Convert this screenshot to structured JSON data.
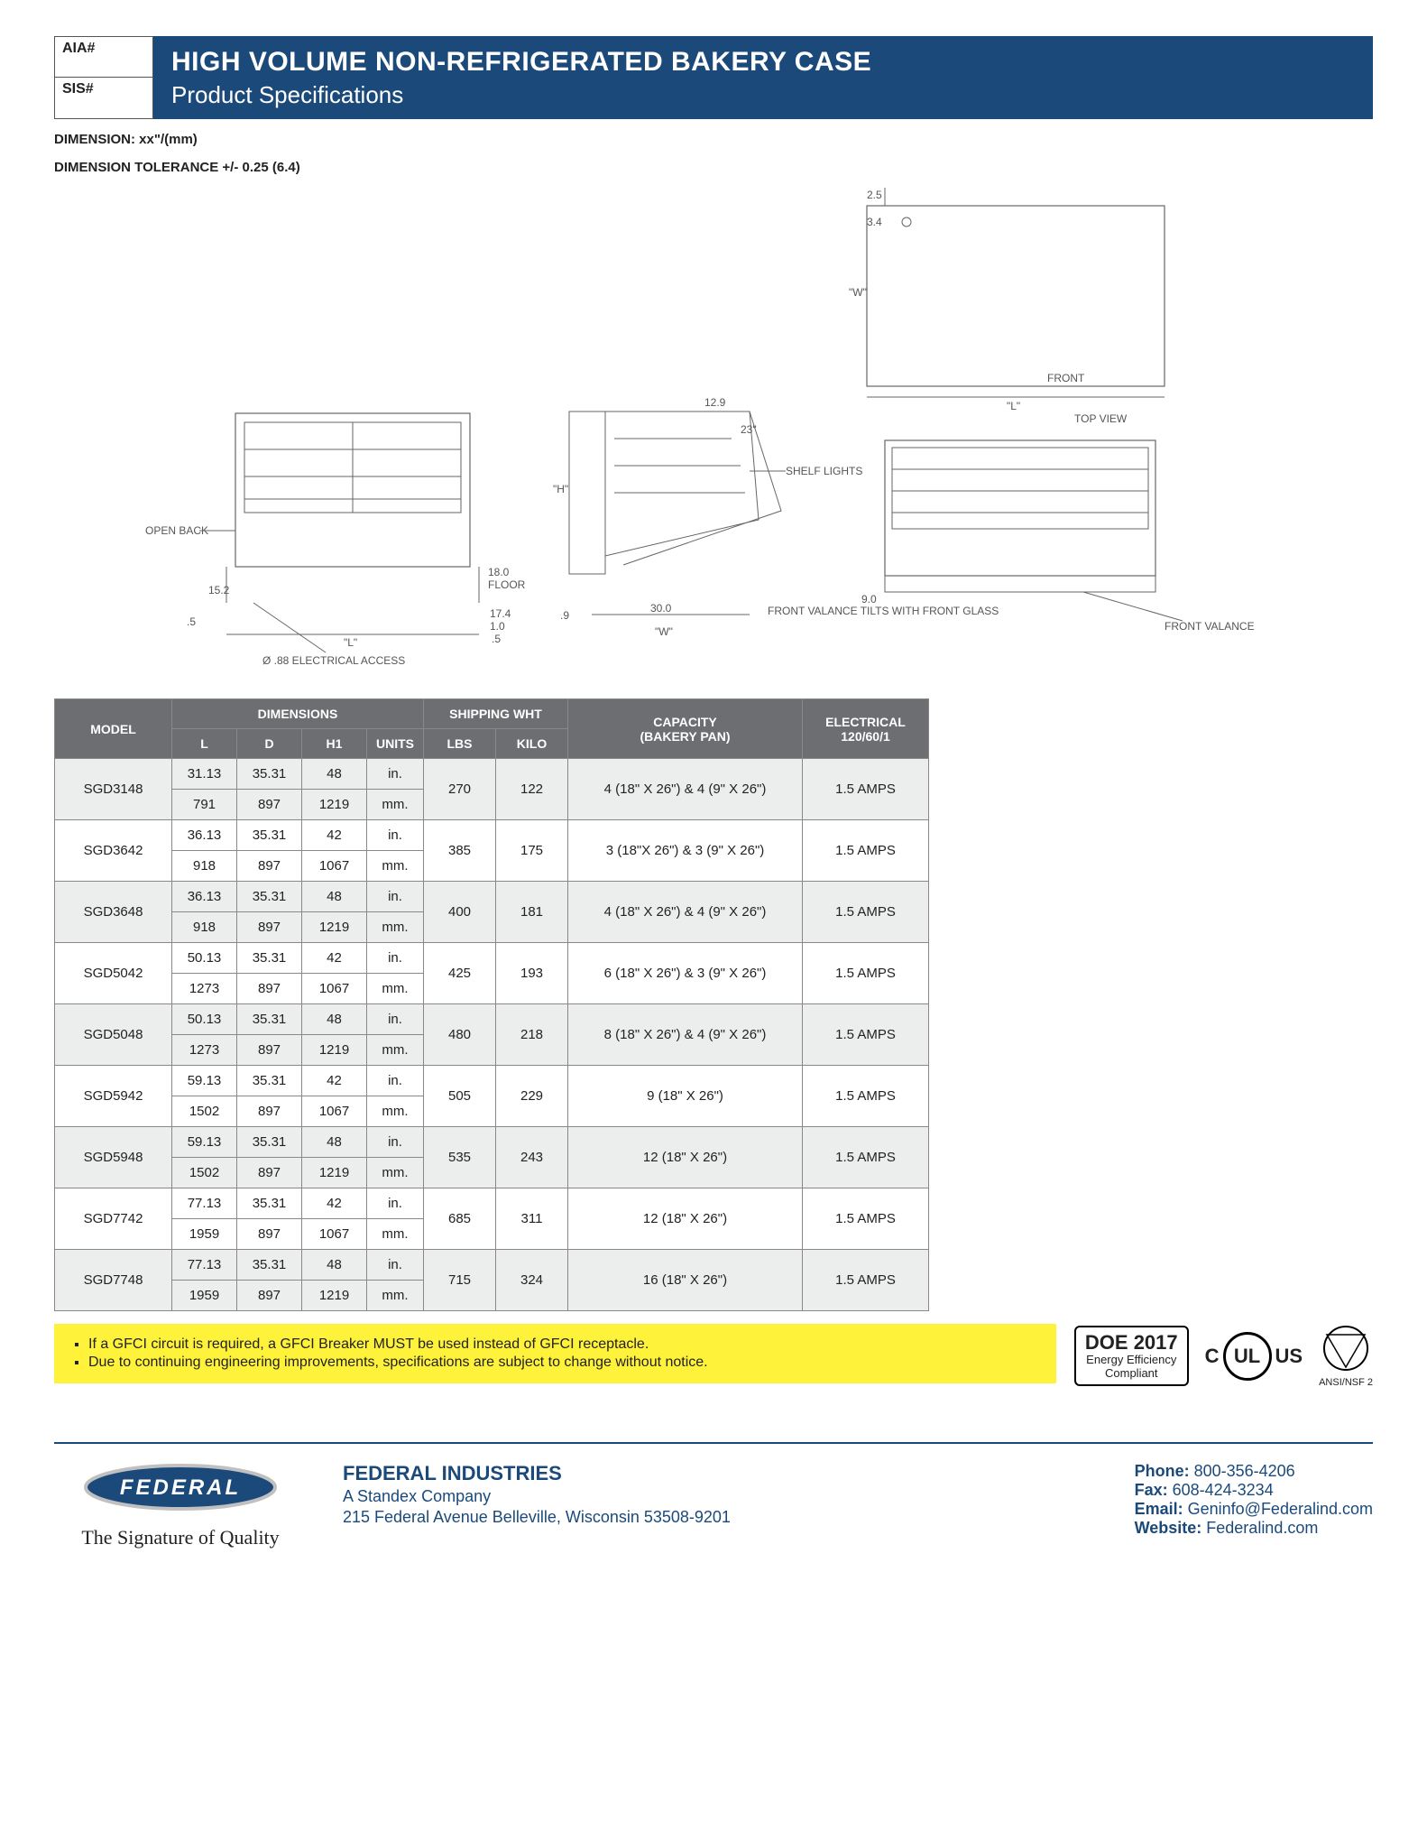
{
  "header": {
    "aia_label": "AIA#",
    "sis_label": "SIS#",
    "title": "HIGH VOLUME NON-REFRIGERATED BAKERY CASE",
    "subtitle": "Product Specifications"
  },
  "notes": {
    "dim_note1": "DIMENSION:  xx\"/(mm)",
    "dim_note2": "DIMENSION TOLERANCE +/- 0.25 (6.4)"
  },
  "diagram_labels": {
    "top_25": "2.5",
    "top_34": "3.4",
    "w": "\"W\"",
    "front": "FRONT",
    "l_top": "\"L\"",
    "top_view": "TOP VIEW",
    "d129": "12.9",
    "d23": "23\"",
    "shelf_lights": "SHELF LIGHTS",
    "open_back": "OPEN BACK",
    "d152": "15.2",
    "floor180": "18.0",
    "floor": "FLOOR",
    "d174": "17.4",
    "d10": "1.0",
    "d05": ".5",
    "l_bottom": "\"L\"",
    "elec": "Ø .88 ELECTRICAL ACCESS",
    "h": "\"H\"",
    "d9": ".9",
    "d300": "30.0",
    "w2": "\"W\"",
    "d90": "9.0",
    "front_valance": "FRONT VALANCE",
    "tilts": "FRONT VALANCE TILTS WITH FRONT GLASS"
  },
  "table": {
    "headers": {
      "model": "MODEL",
      "dimensions": "DIMENSIONS",
      "shipping": "SHIPPING WHT",
      "capacity": "CAPACITY",
      "capacity_sub": "(BAKERY PAN)",
      "electrical": "ELECTRICAL",
      "electrical_sub": "120/60/1",
      "L": "L",
      "D": "D",
      "H1": "H1",
      "UNITS": "UNITS",
      "LBS": "LBS",
      "KILO": "KILO"
    },
    "rows": [
      {
        "model": "SGD3148",
        "in": [
          "31.13",
          "35.31",
          "48"
        ],
        "mm": [
          "791",
          "897",
          "1219"
        ],
        "lbs": "270",
        "kilo": "122",
        "cap": "4 (18\" X 26\") & 4 (9\" X 26\")",
        "elec": "1.5 AMPS",
        "alt": true
      },
      {
        "model": "SGD3642",
        "in": [
          "36.13",
          "35.31",
          "42"
        ],
        "mm": [
          "918",
          "897",
          "1067"
        ],
        "lbs": "385",
        "kilo": "175",
        "cap": "3 (18\"X 26\") & 3 (9\" X 26\")",
        "elec": "1.5 AMPS",
        "alt": false
      },
      {
        "model": "SGD3648",
        "in": [
          "36.13",
          "35.31",
          "48"
        ],
        "mm": [
          "918",
          "897",
          "1219"
        ],
        "lbs": "400",
        "kilo": "181",
        "cap": "4 (18\" X 26\") & 4 (9\" X 26\")",
        "elec": "1.5 AMPS",
        "alt": true
      },
      {
        "model": "SGD5042",
        "in": [
          "50.13",
          "35.31",
          "42"
        ],
        "mm": [
          "1273",
          "897",
          "1067"
        ],
        "lbs": "425",
        "kilo": "193",
        "cap": "6 (18\" X 26\") & 3 (9\" X 26\")",
        "elec": "1.5 AMPS",
        "alt": false
      },
      {
        "model": "SGD5048",
        "in": [
          "50.13",
          "35.31",
          "48"
        ],
        "mm": [
          "1273",
          "897",
          "1219"
        ],
        "lbs": "480",
        "kilo": "218",
        "cap": "8 (18\" X 26\") & 4 (9\" X 26\")",
        "elec": "1.5 AMPS",
        "alt": true
      },
      {
        "model": "SGD5942",
        "in": [
          "59.13",
          "35.31",
          "42"
        ],
        "mm": [
          "1502",
          "897",
          "1067"
        ],
        "lbs": "505",
        "kilo": "229",
        "cap": "9 (18\" X 26\")",
        "elec": "1.5 AMPS",
        "alt": false
      },
      {
        "model": "SGD5948",
        "in": [
          "59.13",
          "35.31",
          "48"
        ],
        "mm": [
          "1502",
          "897",
          "1219"
        ],
        "lbs": "535",
        "kilo": "243",
        "cap": "12 (18\" X 26\")",
        "elec": "1.5 AMPS",
        "alt": true
      },
      {
        "model": "SGD7742",
        "in": [
          "77.13",
          "35.31",
          "42"
        ],
        "mm": [
          "1959",
          "897",
          "1067"
        ],
        "lbs": "685",
        "kilo": "311",
        "cap": "12 (18\" X 26\")",
        "elec": "1.5 AMPS",
        "alt": false
      },
      {
        "model": "SGD7748",
        "in": [
          "77.13",
          "35.31",
          "48"
        ],
        "mm": [
          "1959",
          "897",
          "1219"
        ],
        "lbs": "715",
        "kilo": "324",
        "cap": "16 (18\" X 26\")",
        "elec": "1.5 AMPS",
        "alt": true
      }
    ],
    "units_in": "in.",
    "units_mm": "mm."
  },
  "yellow_notes": {
    "n1": "If a GFCI circuit is required, a GFCI Breaker MUST be used instead of GFCI receptacle.",
    "n2": "Due to continuing engineering improvements, specifications are subject to change without notice."
  },
  "cert": {
    "doe_top": "DOE 2017",
    "doe_mid": "Energy Efficiency",
    "doe_bot": "Compliant",
    "ul_c": "C",
    "ul_us": "US",
    "ul": "UL",
    "nsf": "ANSI/NSF 2"
  },
  "footer": {
    "logo": "FEDERAL",
    "tagline": "The Signature of Quality",
    "company": "FEDERAL INDUSTRIES",
    "sub": "A Standex Company",
    "addr": "215 Federal Avenue Belleville, Wisconsin 53508-9201",
    "phone_lbl": "Phone:",
    "phone": "800-356-4206",
    "fax_lbl": "Fax:",
    "fax": "608-424-3234",
    "email_lbl": "Email:",
    "email": "Geninfo@Federalind.com",
    "web_lbl": "Website:",
    "web": "Federalind.com"
  },
  "colors": {
    "header_bg": "#1b4a7a",
    "th_bg": "#6d6e71",
    "alt_bg": "#eceded",
    "yellow": "#fff23a"
  }
}
